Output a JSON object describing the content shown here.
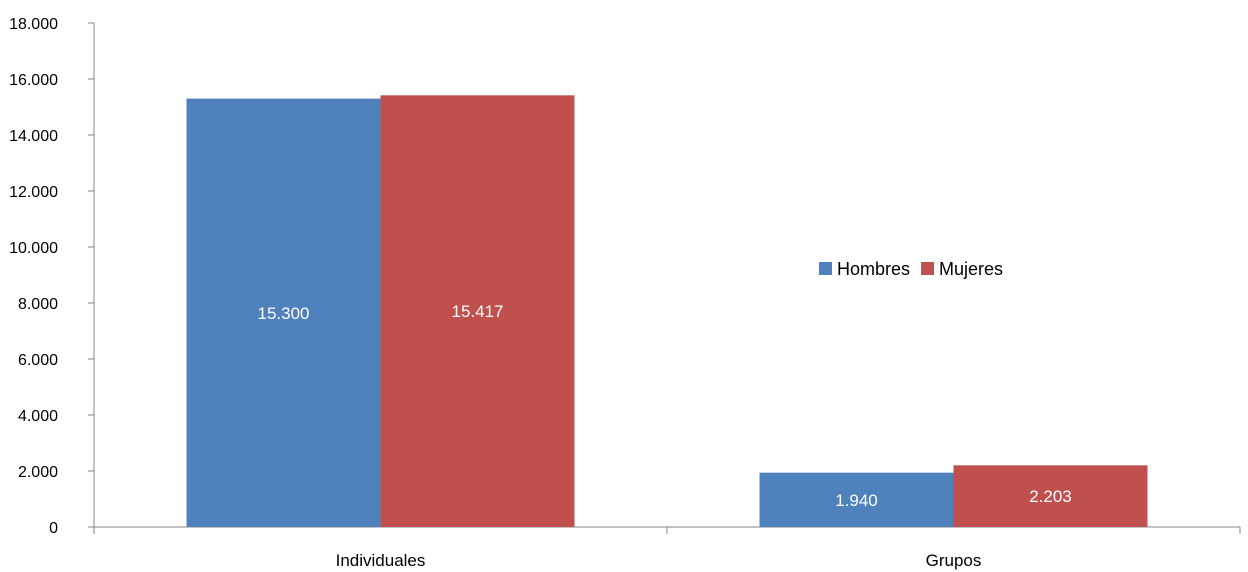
{
  "chart_data": {
    "type": "bar",
    "categories": [
      "Individuales",
      "Grupos"
    ],
    "series": [
      {
        "name": "Hombres",
        "values": [
          15300,
          1940
        ],
        "labels": [
          "15.300",
          "1.940"
        ],
        "color": "#4F81BD"
      },
      {
        "name": "Mujeres",
        "values": [
          15417,
          2203
        ],
        "labels": [
          "15.417",
          "2.203"
        ],
        "color": "#C0504D"
      }
    ],
    "title": "",
    "xlabel": "",
    "ylabel": "",
    "ylim": [
      0,
      18000
    ],
    "yticks": [
      0,
      2000,
      4000,
      6000,
      8000,
      10000,
      12000,
      14000,
      16000,
      18000
    ],
    "ytick_labels": [
      "0",
      "2.000",
      "4.000",
      "6.000",
      "8.000",
      "10.000",
      "12.000",
      "14.000",
      "16.000",
      "18.000"
    ],
    "grid": false,
    "legend_position": "right"
  }
}
